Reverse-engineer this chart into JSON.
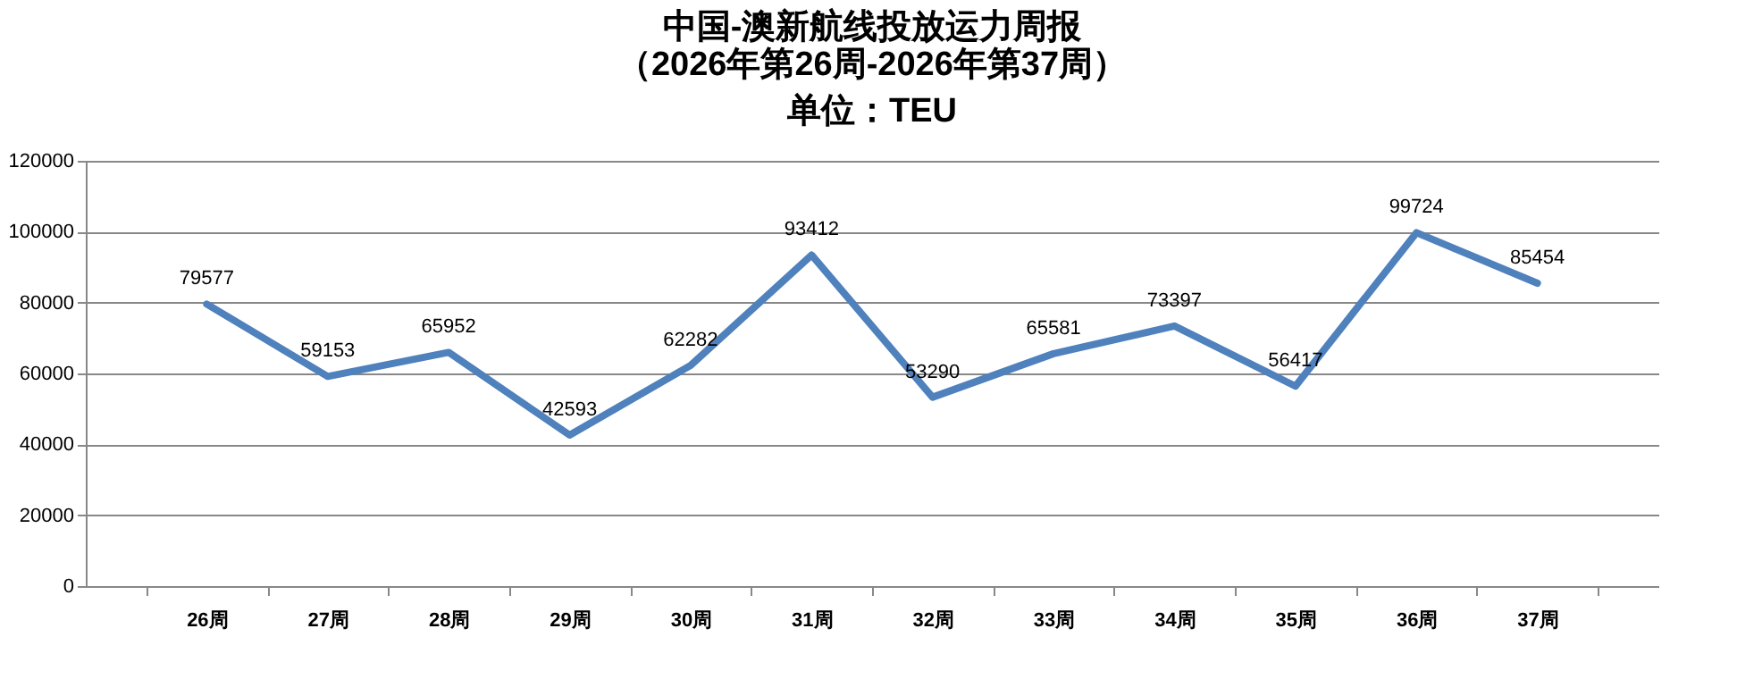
{
  "chart_data": {
    "type": "line",
    "title": "中国-澳新航线投放运力周报",
    "subtitle": "（2026年第26周-2026年第37周）",
    "annotations": [
      "单位：TEU"
    ],
    "categories": [
      "26周",
      "27周",
      "28周",
      "29周",
      "30周",
      "31周",
      "32周",
      "33周",
      "34周",
      "35周",
      "36周",
      "37周"
    ],
    "series": [
      {
        "color": "#4f81bd",
        "values": [
          79577,
          59153,
          65952,
          42593,
          62282,
          93412,
          53290,
          65581,
          73397,
          56417,
          99724,
          85454
        ]
      }
    ],
    "ylim": [
      0,
      120000
    ],
    "yticks": [
      0,
      20000,
      40000,
      60000,
      80000,
      100000,
      120000
    ],
    "grid": "y",
    "legend": false,
    "marker": "none",
    "line_style": "solid",
    "data_labels": true
  }
}
